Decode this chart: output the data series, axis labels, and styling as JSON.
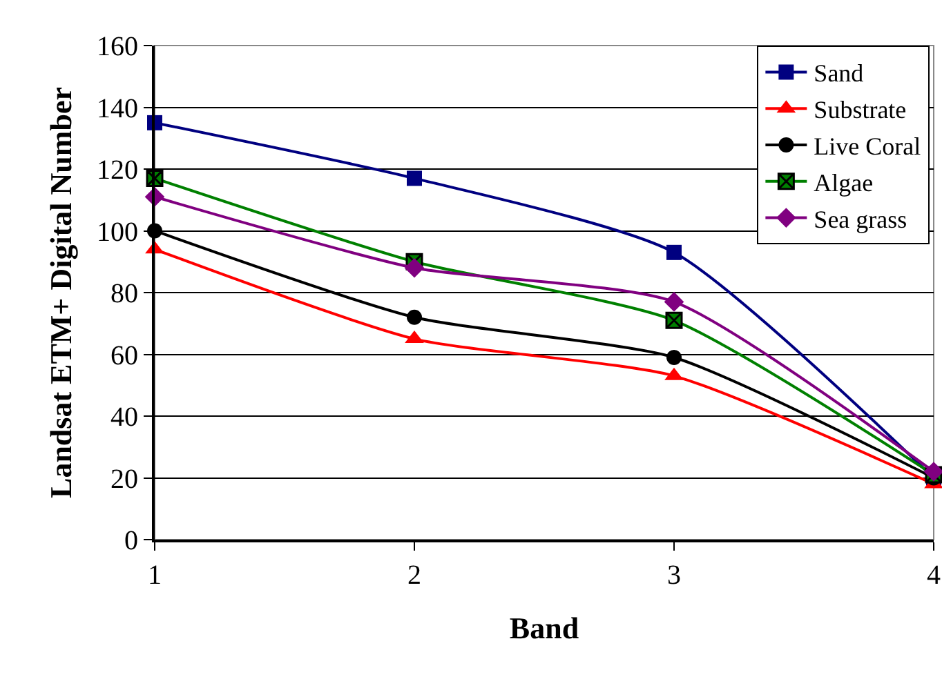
{
  "chart_data": {
    "type": "line",
    "xlabel": "Band",
    "ylabel": "Landsat ETM+ Digital Number",
    "x": [
      1,
      2,
      3,
      4
    ],
    "xlim": [
      1,
      4
    ],
    "xticks": [
      1,
      2,
      3,
      4
    ],
    "ylim": [
      0,
      160
    ],
    "yticks": [
      0,
      20,
      40,
      60,
      80,
      100,
      120,
      140,
      160
    ],
    "grid": "y",
    "legend": "top right",
    "series": [
      {
        "name": "Sand",
        "color": "#000080",
        "marker": "square",
        "values": [
          135,
          117,
          93,
          20
        ]
      },
      {
        "name": "Substrate",
        "color": "#ff0000",
        "marker": "triangle",
        "values": [
          94,
          65,
          53,
          18
        ]
      },
      {
        "name": "Live Coral",
        "color": "#000000",
        "marker": "circle",
        "values": [
          100,
          72,
          59,
          20
        ]
      },
      {
        "name": "Algae",
        "color": "#008000",
        "marker": "cross",
        "values": [
          117,
          90,
          71,
          21
        ]
      },
      {
        "name": "Sea grass",
        "color": "#800080",
        "marker": "diamond",
        "values": [
          111,
          88,
          77,
          22
        ]
      }
    ]
  }
}
